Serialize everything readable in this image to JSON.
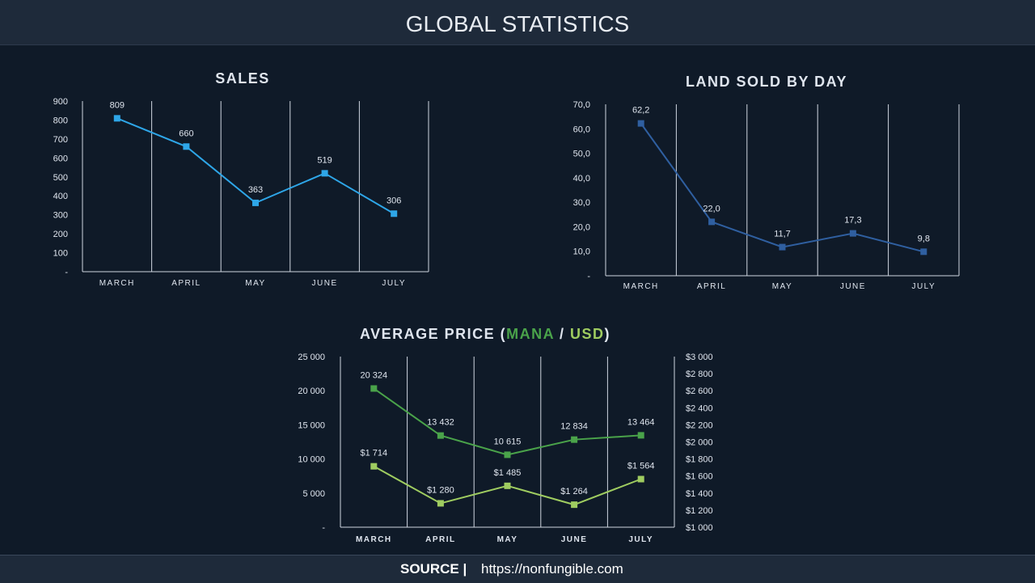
{
  "header": {
    "title": "GLOBAL STATISTICS"
  },
  "footer": {
    "source_label": "SOURCE |",
    "url": "https://nonfungible.com"
  },
  "colors": {
    "sales": "#2ea6e8",
    "land": "#2f5fa0",
    "mana": "#4aa34a",
    "usd": "#9fcc60"
  },
  "chart_titles": {
    "sales": "SALES",
    "land": "LAND SOLD BY DAY",
    "avg_prefix": "AVERAGE PRICE (",
    "avg_mana": "MANA",
    "avg_sep": " / ",
    "avg_usd": "USD",
    "avg_suffix": ")"
  },
  "chart_data": [
    {
      "type": "line",
      "title": "SALES",
      "categories": [
        "MARCH",
        "APRIL",
        "MAY",
        "JUNE",
        "JULY"
      ],
      "values": [
        809,
        660,
        363,
        519,
        306
      ],
      "data_labels": [
        "809",
        "660",
        "363",
        "519",
        "306"
      ],
      "y_ticks": [
        "-",
        "100",
        "200",
        "300",
        "400",
        "500",
        "600",
        "700",
        "800",
        "900"
      ],
      "ylim": [
        0,
        900
      ],
      "grid": "vertical"
    },
    {
      "type": "line",
      "title": "LAND SOLD BY DAY",
      "categories": [
        "MARCH",
        "APRIL",
        "MAY",
        "JUNE",
        "JULY"
      ],
      "values": [
        62.2,
        22.0,
        11.7,
        17.3,
        9.8
      ],
      "data_labels": [
        "62,2",
        "22,0",
        "11,7",
        "17,3",
        "9,8"
      ],
      "y_ticks": [
        "-",
        "10,0",
        "20,0",
        "30,0",
        "40,0",
        "50,0",
        "60,0",
        "70,0"
      ],
      "ylim": [
        0,
        70
      ],
      "grid": "vertical"
    },
    {
      "type": "line",
      "title": "AVERAGE PRICE (MANA / USD)",
      "categories": [
        "MARCH",
        "APRIL",
        "MAY",
        "JUNE",
        "JULY"
      ],
      "series": [
        {
          "name": "MANA",
          "axis": "left",
          "values": [
            20324,
            13432,
            10615,
            12834,
            13464
          ],
          "labels": [
            "20 324",
            "13 432",
            "10 615",
            "12 834",
            "13 464"
          ]
        },
        {
          "name": "USD",
          "axis": "right",
          "values": [
            1714,
            1280,
            1485,
            1264,
            1564
          ],
          "labels": [
            "$1 714",
            "$1 280",
            "$1 485",
            "$1 264",
            "$1 564"
          ]
        }
      ],
      "y_ticks_left": [
        "-",
        "5 000",
        "10 000",
        "15 000",
        "20 000",
        "25 000"
      ],
      "ylim_left": [
        0,
        25000
      ],
      "y_ticks_right": [
        "$1 000",
        "$1 200",
        "$1 400",
        "$1 600",
        "$1 800",
        "$2 000",
        "$2 200",
        "$2 400",
        "$2 600",
        "$2 800",
        "$3 000"
      ],
      "ylim_right": [
        1000,
        3000
      ],
      "grid": "vertical"
    }
  ]
}
